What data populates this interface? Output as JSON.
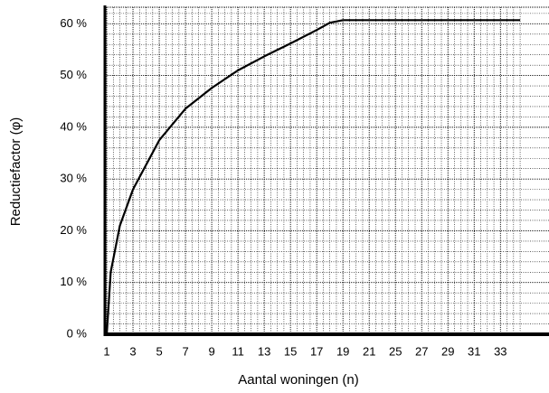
{
  "chart_data": {
    "type": "line",
    "x_label": "Aantal woningen (n)",
    "y_label": "Reductiefactor (φ)",
    "x": [
      1,
      1.3,
      2,
      3,
      5,
      7,
      9,
      11,
      13,
      15,
      17,
      18,
      19,
      20,
      32.5
    ],
    "series": [
      {
        "color": "#000000",
        "values": [
          0,
          12,
          21,
          28,
          37.5,
          43.6,
          47.6,
          51,
          53.7,
          56.2,
          58.8,
          60.2,
          60.7,
          60.7,
          60.7
        ]
      }
    ],
    "xlim": [
      0.86,
      34.7
    ],
    "ylim": [
      0,
      63.2
    ],
    "xticks": [
      1,
      3,
      5,
      7,
      9,
      11,
      13,
      15,
      17,
      19,
      21,
      {
        "value": 23,
        "label": "25"
      },
      {
        "value": 25,
        "label": "27"
      },
      {
        "value": 27,
        "label": "29"
      },
      {
        "value": 29,
        "label": "31"
      },
      {
        "value": 31,
        "label": "33"
      }
    ],
    "yticks": [
      {
        "value": 0,
        "label": "0 %"
      },
      {
        "value": 10,
        "label": "10 %"
      },
      {
        "value": 20,
        "label": "20 %"
      },
      {
        "value": 30,
        "label": "30 %"
      },
      {
        "value": 40,
        "label": "40 %"
      },
      {
        "value": 50,
        "label": "50 %"
      },
      {
        "value": 60,
        "label": "60 %"
      }
    ],
    "grid": true,
    "minor_divisions": {
      "x": 4,
      "y": 5
    }
  }
}
